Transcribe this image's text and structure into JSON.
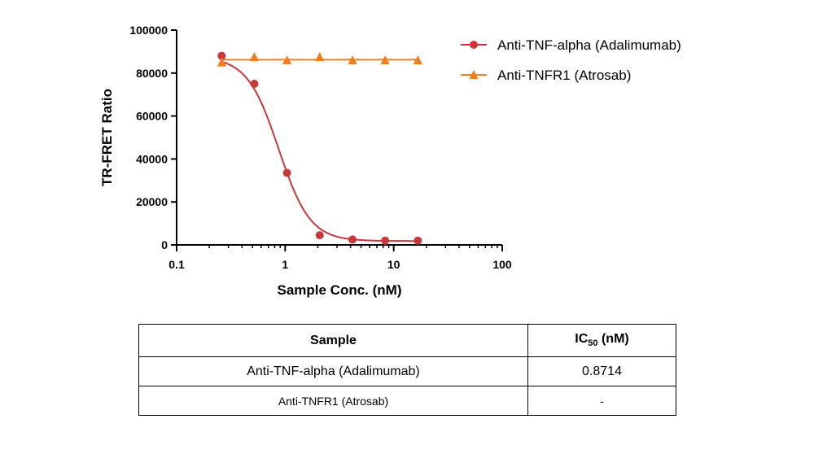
{
  "chart_data": {
    "type": "scatter",
    "xlabel": "Sample Conc. (nM)",
    "ylabel": "TR-FRET Ratio",
    "xscale": "log",
    "xlim": [
      0.1,
      100
    ],
    "ylim": [
      0,
      100000
    ],
    "xticks": [
      "0.1",
      "1",
      "10",
      "100"
    ],
    "yticks": [
      "0",
      "20000",
      "40000",
      "60000",
      "80000",
      "100000"
    ],
    "grid": false,
    "legend_position": "top-right",
    "series": [
      {
        "name": "Anti-TNF-alpha (Adalimumab)",
        "marker": "circle",
        "color": "#c8393b",
        "x": [
          0.26,
          0.52,
          1.04,
          2.08,
          4.17,
          8.33,
          16.7
        ],
        "y": [
          88000,
          75000,
          33500,
          4500,
          2500,
          2000,
          2000
        ],
        "fit": {
          "top": 87500,
          "bottom": 1800,
          "ic50": 0.8714,
          "hill": 3.0
        }
      },
      {
        "name": "Anti-TNFR1 (Atrosab)",
        "marker": "triangle",
        "color": "#f07d1f",
        "x": [
          0.26,
          0.52,
          1.04,
          2.08,
          4.17,
          8.33,
          16.7
        ],
        "y": [
          85000,
          87500,
          86000,
          87500,
          86000,
          86000,
          86000
        ],
        "fit": {
          "constant": 86200
        }
      }
    ]
  },
  "table": {
    "headers": {
      "sample": "Sample",
      "ic50_main": "IC",
      "ic50_sub": "50",
      "ic50_unit": " (nM)"
    },
    "rows": [
      {
        "sample": "Anti-TNF-alpha (Adalimumab)",
        "ic50": "0.8714"
      },
      {
        "sample": "Anti-TNFR1 (Atrosab)",
        "ic50": "-"
      }
    ]
  }
}
